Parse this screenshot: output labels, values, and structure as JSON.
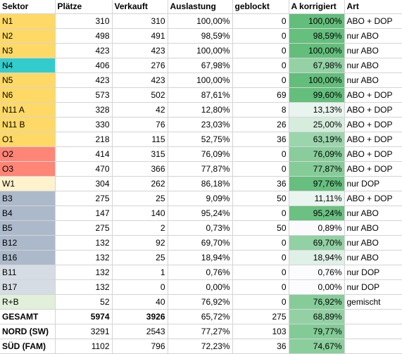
{
  "headers": {
    "sektor": "Sektor",
    "plaetze": "Plätze",
    "verkauft": "Verkauft",
    "auslastung": "Auslastung",
    "geblockt": "geblockt",
    "a_korrigiert": "A korrigiert",
    "art": "Art"
  },
  "rows": [
    {
      "sektor": "N1",
      "plaetze": "310",
      "verkauft": "310",
      "auslastung": "100,00%",
      "geblockt": "0",
      "a_korrigiert": "100,00%",
      "art": "ABO + DOP",
      "sektor_color": "#ffd966",
      "a_level": 1.0
    },
    {
      "sektor": "N2",
      "plaetze": "498",
      "verkauft": "491",
      "auslastung": "98,59%",
      "geblockt": "0",
      "a_korrigiert": "98,59%",
      "art": "nur ABO",
      "sektor_color": "#ffd966",
      "a_level": 0.9859
    },
    {
      "sektor": "N3",
      "plaetze": "423",
      "verkauft": "423",
      "auslastung": "100,00%",
      "geblockt": "0",
      "a_korrigiert": "100,00%",
      "art": "nur ABO",
      "sektor_color": "#ffd966",
      "a_level": 1.0
    },
    {
      "sektor": "N4",
      "plaetze": "406",
      "verkauft": "276",
      "auslastung": "67,98%",
      "geblockt": "0",
      "a_korrigiert": "67,98%",
      "art": "nur ABO",
      "sektor_color": "#33cccc",
      "a_level": 0.6798
    },
    {
      "sektor": "N5",
      "plaetze": "423",
      "verkauft": "423",
      "auslastung": "100,00%",
      "geblockt": "0",
      "a_korrigiert": "100,00%",
      "art": "nur ABO",
      "sektor_color": "#ffd966",
      "a_level": 1.0
    },
    {
      "sektor": "N6",
      "plaetze": "573",
      "verkauft": "502",
      "auslastung": "87,61%",
      "geblockt": "69",
      "a_korrigiert": "99,60%",
      "art": "ABO + DOP",
      "sektor_color": "#ffd966",
      "a_level": 0.996
    },
    {
      "sektor": "N11 A",
      "plaetze": "328",
      "verkauft": "42",
      "auslastung": "12,80%",
      "geblockt": "8",
      "a_korrigiert": "13,13%",
      "art": "ABO + DOP",
      "sektor_color": "#ffd966",
      "a_level": 0.1313
    },
    {
      "sektor": "N11 B",
      "plaetze": "330",
      "verkauft": "76",
      "auslastung": "23,03%",
      "geblockt": "26",
      "a_korrigiert": "25,00%",
      "art": "ABO + DOP",
      "sektor_color": "#ffd966",
      "a_level": 0.25
    },
    {
      "sektor": "O1",
      "plaetze": "218",
      "verkauft": "115",
      "auslastung": "52,75%",
      "geblockt": "36",
      "a_korrigiert": "63,19%",
      "art": "ABO + DOP",
      "sektor_color": "#ffd966",
      "a_level": 0.6319
    },
    {
      "sektor": "O2",
      "plaetze": "414",
      "verkauft": "315",
      "auslastung": "76,09%",
      "geblockt": "0",
      "a_korrigiert": "76,09%",
      "art": "ABO + DOP",
      "sektor_color": "#ff8577",
      "a_level": 0.7609
    },
    {
      "sektor": "O3",
      "plaetze": "470",
      "verkauft": "366",
      "auslastung": "77,87%",
      "geblockt": "0",
      "a_korrigiert": "77,87%",
      "art": "ABO + DOP",
      "sektor_color": "#ff8577",
      "a_level": 0.7787
    },
    {
      "sektor": "W1",
      "plaetze": "304",
      "verkauft": "262",
      "auslastung": "86,18%",
      "geblockt": "36",
      "a_korrigiert": "97,76%",
      "art": "nur DOP",
      "sektor_color": "#fff2cc",
      "a_level": 0.9776
    },
    {
      "sektor": "B3",
      "plaetze": "275",
      "verkauft": "25",
      "auslastung": "9,09%",
      "geblockt": "50",
      "a_korrigiert": "11,11%",
      "art": "ABO + DOP",
      "sektor_color": "#acb9ca",
      "a_level": 0.1111
    },
    {
      "sektor": "B4",
      "plaetze": "147",
      "verkauft": "140",
      "auslastung": "95,24%",
      "geblockt": "0",
      "a_korrigiert": "95,24%",
      "art": "nur ABO",
      "sektor_color": "#acb9ca",
      "a_level": 0.9524
    },
    {
      "sektor": "B5",
      "plaetze": "275",
      "verkauft": "2",
      "auslastung": "0,73%",
      "geblockt": "50",
      "a_korrigiert": "0,89%",
      "art": "nur ABO",
      "sektor_color": "#acb9ca",
      "a_level": 0.0089
    },
    {
      "sektor": "B12",
      "plaetze": "132",
      "verkauft": "92",
      "auslastung": "69,70%",
      "geblockt": "0",
      "a_korrigiert": "69,70%",
      "art": "nur ABO",
      "sektor_color": "#acb9ca",
      "a_level": 0.697
    },
    {
      "sektor": "B16",
      "plaetze": "132",
      "verkauft": "25",
      "auslastung": "18,94%",
      "geblockt": "0",
      "a_korrigiert": "18,94%",
      "art": "nur ABO",
      "sektor_color": "#acb9ca",
      "a_level": 0.1894
    },
    {
      "sektor": "B11",
      "plaetze": "132",
      "verkauft": "1",
      "auslastung": "0,76%",
      "geblockt": "0",
      "a_korrigiert": "0,76%",
      "art": "nur DOP",
      "sektor_color": "#d6dce4",
      "a_level": 0.0076
    },
    {
      "sektor": "B17",
      "plaetze": "132",
      "verkauft": "0",
      "auslastung": "0,00%",
      "geblockt": "0",
      "a_korrigiert": "0,00%",
      "art": "nur DOP",
      "sektor_color": "#d6dce4",
      "a_level": 0.0
    },
    {
      "sektor": "R+B",
      "plaetze": "52",
      "verkauft": "40",
      "auslastung": "76,92%",
      "geblockt": "0",
      "a_korrigiert": "76,92%",
      "art": "gemischt",
      "sektor_color": "#e2efda",
      "a_level": 0.7692
    }
  ],
  "summary": [
    {
      "sektor": "GESAMT",
      "plaetze": "5974",
      "verkauft": "3926",
      "auslastung": "65,72%",
      "geblockt": "275",
      "a_korrigiert": "68,89%",
      "art": "",
      "a_level": 0.6889,
      "bold_values": true
    },
    {
      "sektor": "NORD (SW)",
      "plaetze": "3291",
      "verkauft": "2543",
      "auslastung": "77,27%",
      "geblockt": "103",
      "a_korrigiert": "79,77%",
      "art": "",
      "a_level": 0.7977,
      "bold_values": false
    },
    {
      "sektor": "SÜD (FAM)",
      "plaetze": "1102",
      "verkauft": "796",
      "auslastung": "72,23%",
      "geblockt": "36",
      "a_korrigiert": "74,67%",
      "art": "",
      "a_level": 0.7467,
      "bold_values": false
    }
  ],
  "colors": {
    "scale_low": "#fcfcff",
    "scale_high": "#63be7b",
    "grid": "#d4d4d4"
  }
}
